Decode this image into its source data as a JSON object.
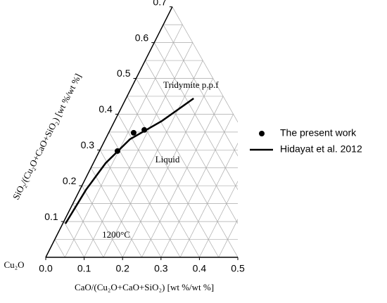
{
  "chart_data": {
    "type": "scatter",
    "corner_label": "Cu₂O",
    "xlabel": "CaO/(Cu₂O+CaO+SiO₂) [wt %/wt %]",
    "ylabel": "SiO₂/(Cu₂O+CaO+SiO₂) [wt %/wt %]",
    "annotations": [
      "Tridymite p.p.f",
      "Liquid",
      "1200°C"
    ],
    "xlim": [
      0,
      0.5
    ],
    "ylim": [
      0,
      0.7
    ],
    "xticks": [
      {
        "value": 0,
        "label": "0.0"
      },
      0.1,
      0.2,
      0.3,
      0.4,
      0.5
    ],
    "yticks": [
      0.1,
      0.2,
      0.3,
      0.4,
      0.5,
      0.6,
      0.7
    ],
    "grid": true,
    "series": [
      {
        "name": "The present work",
        "kind": "markers",
        "color": "#000000",
        "x": [
          0.047,
          0.065,
          0.089
        ],
        "values": [
          0.297,
          0.348,
          0.356
        ]
      },
      {
        "name": "Hidayat et al. 2012",
        "kind": "line",
        "color": "#000000",
        "x": [
          0.007,
          0.016,
          0.032,
          0.064,
          0.123,
          0.176
        ],
        "values": [
          0.094,
          0.189,
          0.263,
          0.33,
          0.381,
          0.444
        ]
      }
    ]
  }
}
